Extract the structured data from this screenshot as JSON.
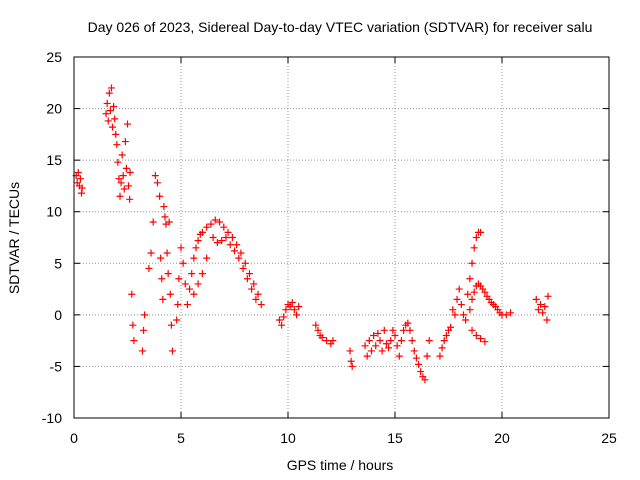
{
  "chart_data": {
    "type": "scatter",
    "title": "Day 026 of 2023, Sidereal Day-to-day VTEC variation (SDTVAR) for receiver salu",
    "xlabel": "GPS time / hours",
    "ylabel": "SDTVAR / TECUs",
    "xlim": [
      0,
      25
    ],
    "ylim": [
      -10,
      25
    ],
    "xticks": [
      "0",
      "5",
      "10",
      "15",
      "20",
      "25"
    ],
    "yticks": [
      "-10",
      "-5",
      "0",
      "5",
      "10",
      "15",
      "20",
      "25"
    ],
    "grid": true,
    "marker": "+",
    "colors": {
      "series": "#ff0000",
      "grid": "#999999",
      "axis": "#000000"
    },
    "series": [
      {
        "name": "SDTVAR",
        "points": [
          [
            0.1,
            13.5
          ],
          [
            0.15,
            12.8
          ],
          [
            0.2,
            13.8
          ],
          [
            0.25,
            12.5
          ],
          [
            0.3,
            13.2
          ],
          [
            0.35,
            11.8
          ],
          [
            0.38,
            12.3
          ],
          [
            1.5,
            19.5
          ],
          [
            1.55,
            20.5
          ],
          [
            1.6,
            18.8
          ],
          [
            1.65,
            21.5
          ],
          [
            1.7,
            19.8
          ],
          [
            1.75,
            22.0
          ],
          [
            1.8,
            18.2
          ],
          [
            1.85,
            20.2
          ],
          [
            1.9,
            19.0
          ],
          [
            1.95,
            17.5
          ],
          [
            2.0,
            16.5
          ],
          [
            2.05,
            14.8
          ],
          [
            2.1,
            13.2
          ],
          [
            2.15,
            11.5
          ],
          [
            2.2,
            12.8
          ],
          [
            2.25,
            15.5
          ],
          [
            2.3,
            13.5
          ],
          [
            2.35,
            12.2
          ],
          [
            2.4,
            16.8
          ],
          [
            2.45,
            14.2
          ],
          [
            2.5,
            18.5
          ],
          [
            2.55,
            12.5
          ],
          [
            2.6,
            11.2
          ],
          [
            2.62,
            13.8
          ],
          [
            2.7,
            2.0
          ],
          [
            2.75,
            -1.0
          ],
          [
            2.8,
            -2.5
          ],
          [
            3.2,
            -3.5
          ],
          [
            3.25,
            -1.5
          ],
          [
            3.3,
            0.0
          ],
          [
            3.5,
            4.5
          ],
          [
            3.6,
            6.0
          ],
          [
            3.7,
            9.0
          ],
          [
            3.8,
            13.5
          ],
          [
            3.9,
            12.8
          ],
          [
            4.0,
            11.5
          ],
          [
            4.05,
            5.5
          ],
          [
            4.1,
            3.5
          ],
          [
            4.15,
            1.5
          ],
          [
            4.2,
            10.5
          ],
          [
            4.25,
            9.5
          ],
          [
            4.3,
            8.8
          ],
          [
            4.35,
            6.0
          ],
          [
            4.4,
            4.0
          ],
          [
            4.45,
            9.0
          ],
          [
            4.5,
            2.0
          ],
          [
            4.55,
            -1.0
          ],
          [
            4.6,
            -3.5
          ],
          [
            4.8,
            -0.5
          ],
          [
            4.85,
            1.0
          ],
          [
            4.9,
            3.5
          ],
          [
            5.0,
            6.5
          ],
          [
            5.1,
            5.0
          ],
          [
            5.2,
            3.0
          ],
          [
            5.3,
            1.0
          ],
          [
            5.4,
            2.5
          ],
          [
            5.5,
            4.0
          ],
          [
            5.6,
            5.5
          ],
          [
            5.7,
            6.5
          ],
          [
            5.8,
            7.2
          ],
          [
            5.9,
            7.8
          ],
          [
            6.0,
            8.0
          ],
          [
            6.2,
            8.5
          ],
          [
            6.4,
            8.8
          ],
          [
            6.6,
            9.2
          ],
          [
            6.8,
            9.0
          ],
          [
            7.0,
            8.5
          ],
          [
            7.2,
            8.0
          ],
          [
            7.4,
            7.5
          ],
          [
            7.6,
            6.8
          ],
          [
            7.8,
            6.0
          ],
          [
            8.0,
            5.0
          ],
          [
            8.2,
            4.0
          ],
          [
            8.4,
            3.0
          ],
          [
            8.6,
            2.0
          ],
          [
            8.75,
            1.0
          ],
          [
            6.5,
            7.5
          ],
          [
            6.7,
            7.0
          ],
          [
            6.9,
            7.2
          ],
          [
            7.1,
            7.5
          ],
          [
            7.3,
            6.8
          ],
          [
            7.5,
            6.2
          ],
          [
            7.7,
            5.5
          ],
          [
            7.9,
            4.5
          ],
          [
            8.1,
            3.5
          ],
          [
            8.3,
            2.5
          ],
          [
            8.5,
            1.5
          ],
          [
            5.6,
            2.0
          ],
          [
            5.8,
            3.0
          ],
          [
            6.0,
            4.0
          ],
          [
            6.2,
            5.5
          ],
          [
            9.6,
            -0.5
          ],
          [
            9.7,
            -1.0
          ],
          [
            9.8,
            -0.2
          ],
          [
            9.9,
            0.5
          ],
          [
            10.0,
            1.0
          ],
          [
            10.1,
            0.8
          ],
          [
            10.2,
            1.2
          ],
          [
            10.3,
            0.5
          ],
          [
            10.4,
            0.0
          ],
          [
            10.5,
            0.8
          ],
          [
            11.3,
            -1.0
          ],
          [
            11.4,
            -1.5
          ],
          [
            11.5,
            -2.0
          ],
          [
            11.6,
            -2.2
          ],
          [
            11.8,
            -2.5
          ],
          [
            12.0,
            -2.8
          ],
          [
            12.1,
            -2.5
          ],
          [
            12.9,
            -3.5
          ],
          [
            12.95,
            -4.5
          ],
          [
            13.0,
            -5.0
          ],
          [
            13.6,
            -3.0
          ],
          [
            13.7,
            -4.0
          ],
          [
            13.8,
            -2.5
          ],
          [
            13.9,
            -3.5
          ],
          [
            14.0,
            -2.0
          ],
          [
            14.1,
            -3.0
          ],
          [
            14.2,
            -1.8
          ],
          [
            14.3,
            -2.5
          ],
          [
            14.4,
            -3.5
          ],
          [
            14.5,
            -1.5
          ],
          [
            14.6,
            -2.8
          ],
          [
            14.7,
            -3.2
          ],
          [
            14.8,
            -2.5
          ],
          [
            14.9,
            -1.5
          ],
          [
            15.0,
            -2.0
          ],
          [
            15.1,
            -3.0
          ],
          [
            15.2,
            -4.0
          ],
          [
            15.3,
            -2.5
          ],
          [
            15.4,
            -1.5
          ],
          [
            15.5,
            -1.0
          ],
          [
            15.6,
            -0.8
          ],
          [
            15.7,
            -1.5
          ],
          [
            15.8,
            -2.5
          ],
          [
            15.9,
            -3.5
          ],
          [
            16.0,
            -4.2
          ],
          [
            16.1,
            -4.8
          ],
          [
            16.2,
            -5.5
          ],
          [
            16.3,
            -6.0
          ],
          [
            16.4,
            -6.3
          ],
          [
            16.5,
            -4.0
          ],
          [
            16.6,
            -2.5
          ],
          [
            17.1,
            -4.0
          ],
          [
            17.2,
            -3.2
          ],
          [
            17.3,
            -2.5
          ],
          [
            17.4,
            -2.0
          ],
          [
            17.5,
            -1.5
          ],
          [
            17.6,
            -1.2
          ],
          [
            17.7,
            0.5
          ],
          [
            17.8,
            0.0
          ],
          [
            17.9,
            1.5
          ],
          [
            18.0,
            2.5
          ],
          [
            18.1,
            1.0
          ],
          [
            18.2,
            0.0
          ],
          [
            18.3,
            -0.5
          ],
          [
            18.4,
            2.0
          ],
          [
            18.5,
            3.5
          ],
          [
            18.6,
            5.0
          ],
          [
            18.7,
            6.5
          ],
          [
            18.8,
            7.5
          ],
          [
            18.9,
            8.0
          ],
          [
            19.0,
            8.0
          ],
          [
            18.5,
            0.5
          ],
          [
            18.6,
            1.5
          ],
          [
            18.7,
            2.2
          ],
          [
            18.8,
            2.8
          ],
          [
            18.9,
            3.0
          ],
          [
            19.0,
            2.8
          ],
          [
            19.1,
            2.5
          ],
          [
            19.2,
            2.2
          ],
          [
            19.3,
            1.8
          ],
          [
            19.4,
            1.5
          ],
          [
            19.5,
            1.2
          ],
          [
            19.6,
            1.0
          ],
          [
            19.7,
            0.8
          ],
          [
            19.8,
            0.5
          ],
          [
            19.9,
            0.2
          ],
          [
            20.0,
            0.0
          ],
          [
            20.2,
            0.0
          ],
          [
            20.4,
            0.2
          ],
          [
            18.6,
            -1.5
          ],
          [
            18.8,
            -2.0
          ],
          [
            19.0,
            -2.3
          ],
          [
            19.2,
            -2.6
          ],
          [
            21.6,
            1.5
          ],
          [
            21.7,
            0.5
          ],
          [
            21.8,
            1.0
          ],
          [
            21.9,
            0.2
          ],
          [
            22.0,
            0.8
          ],
          [
            22.1,
            -0.5
          ],
          [
            22.15,
            1.8
          ]
        ]
      }
    ]
  }
}
